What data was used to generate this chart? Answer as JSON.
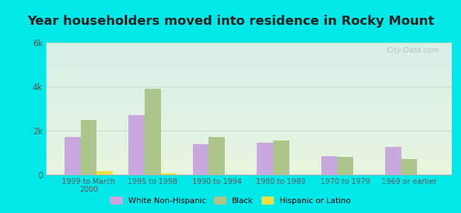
{
  "title": "Year householders moved into residence in Rocky Mount",
  "categories": [
    "1999 to March\n2000",
    "1995 to 1998",
    "1990 to 1994",
    "1980 to 1989",
    "1970 to 1979",
    "1969 or earlier"
  ],
  "white_non_hispanic": [
    1700,
    2700,
    1400,
    1450,
    850,
    1250
  ],
  "black": [
    2500,
    3900,
    1700,
    1550,
    800,
    700
  ],
  "hispanic_or_latino": [
    150,
    80,
    0,
    0,
    0,
    0
  ],
  "white_color": "#c9a8e0",
  "black_color": "#adc48a",
  "hispanic_color": "#f0e040",
  "outer_bg": "#00e8e8",
  "ylim": [
    0,
    6000
  ],
  "yticks": [
    0,
    2000,
    4000,
    6000
  ],
  "ytick_labels": [
    "0",
    "2k",
    "4k",
    "6k"
  ],
  "title_fontsize": 13,
  "watermark": "City-Data.com",
  "grid_color": "#c8ddd0",
  "spine_color": "#b0b0b0"
}
